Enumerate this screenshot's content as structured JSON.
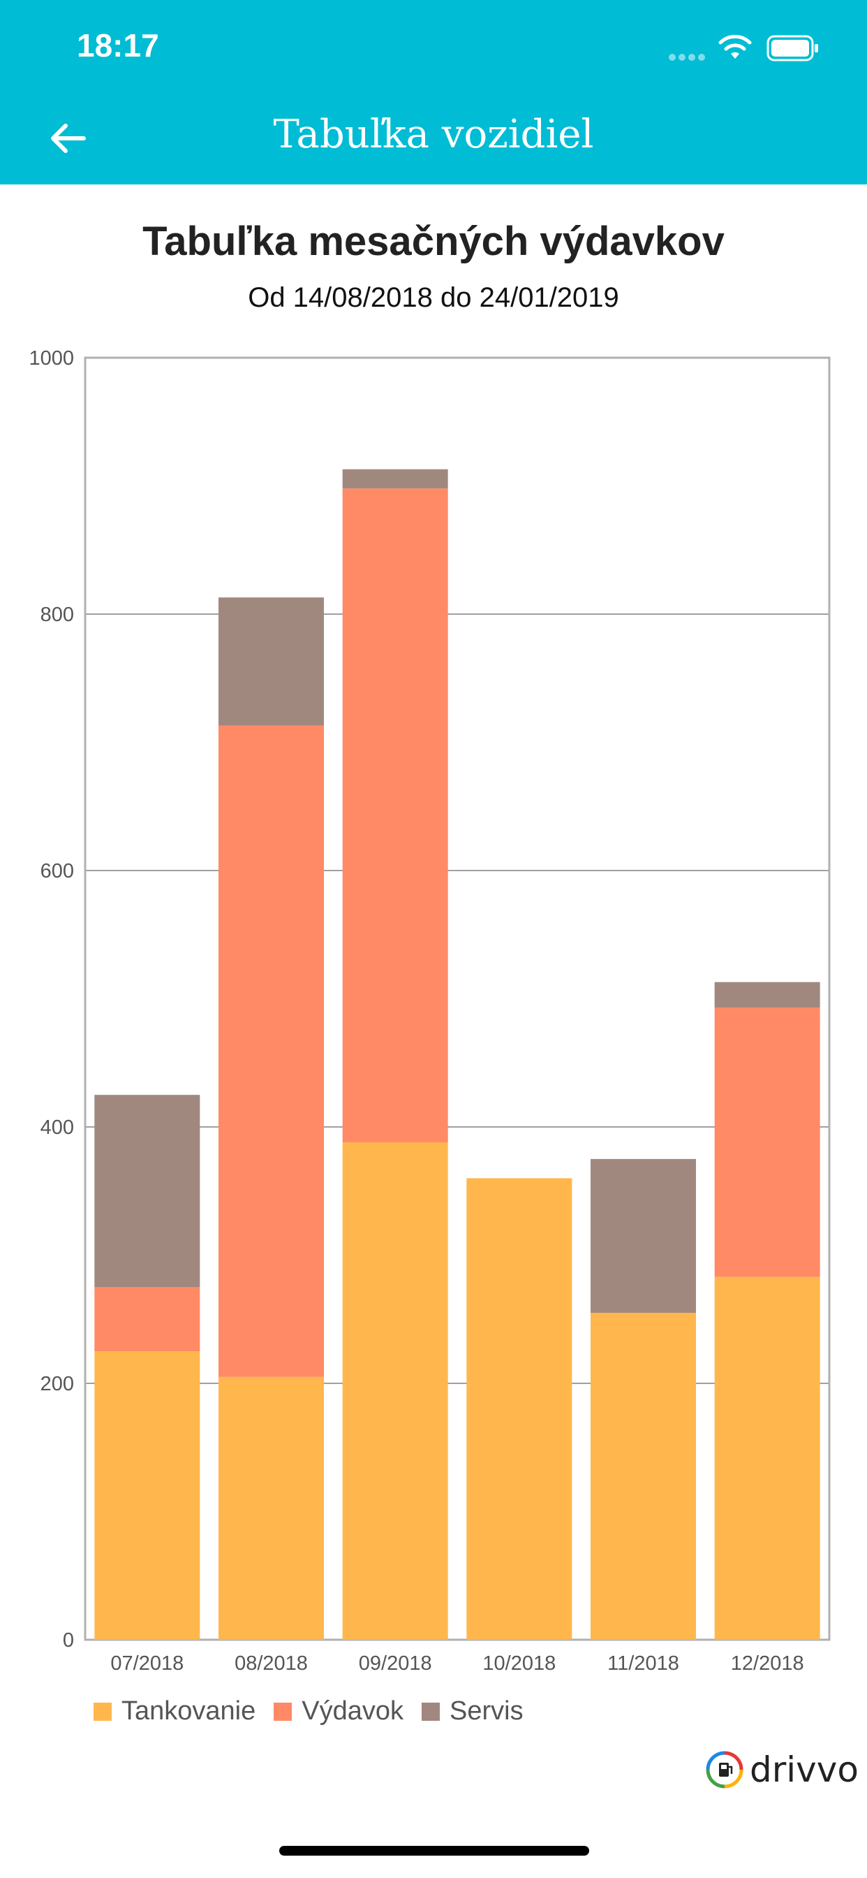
{
  "status_bar": {
    "time": "18:17"
  },
  "app_bar": {
    "title": "Tabuľka vozidiel"
  },
  "colors": {
    "appbar": "#00BCD4",
    "tankovanie": "#FFB74D",
    "vydavok": "#FF8A65",
    "servis": "#A1887F"
  },
  "chart_data": {
    "type": "bar",
    "stacked": true,
    "title": "Tabuľka mesačných výdavkov",
    "subtitle": "Od 14/08/2018 do 24/01/2019",
    "categories": [
      "07/2018",
      "08/2018",
      "09/2018",
      "10/2018",
      "11/2018",
      "12/2018"
    ],
    "series": [
      {
        "name": "Tankovanie",
        "color": "#FFB74D",
        "values": [
          225,
          205,
          388,
          360,
          255,
          283
        ]
      },
      {
        "name": "Výdavok",
        "color": "#FF8A65",
        "values": [
          50,
          508,
          510,
          0,
          0,
          210
        ]
      },
      {
        "name": "Servis",
        "color": "#A1887F",
        "values": [
          150,
          100,
          15,
          0,
          120,
          20
        ]
      }
    ],
    "yticks": [
      "0",
      "200",
      "400",
      "600",
      "800",
      "1000"
    ],
    "ylim": [
      0,
      1000
    ],
    "grid": true,
    "legend": "bottom-left"
  },
  "logo": {
    "text": "drivvo"
  }
}
